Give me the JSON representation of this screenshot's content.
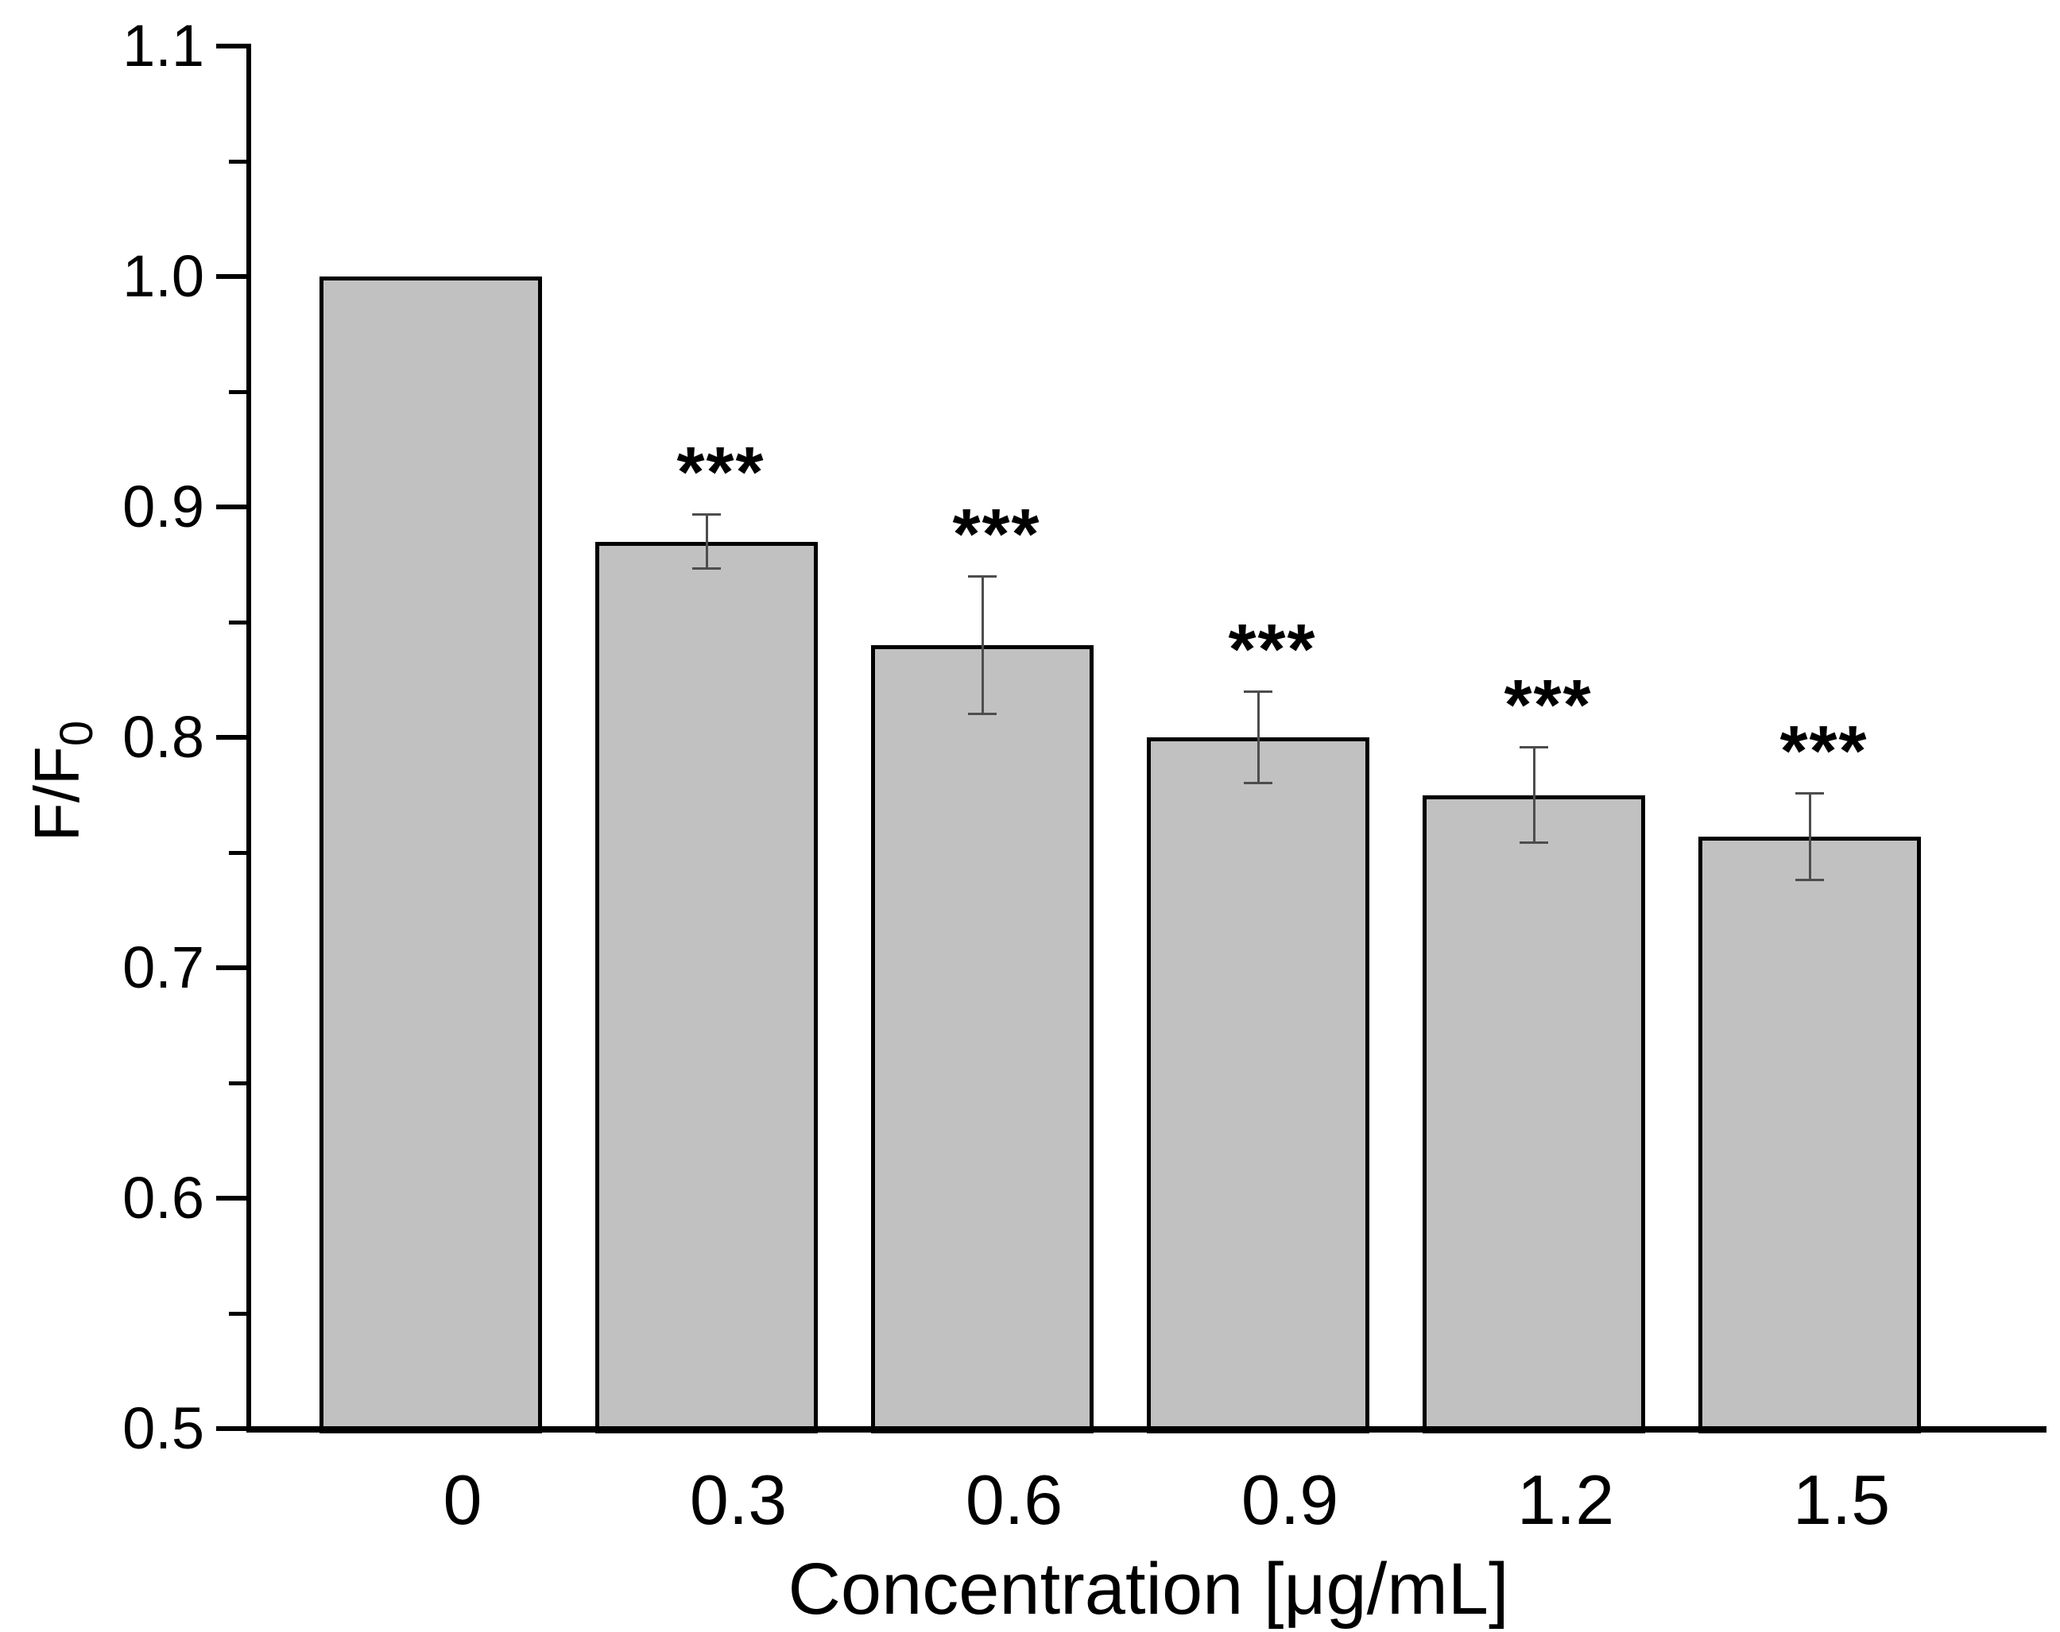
{
  "chart_data": {
    "type": "bar",
    "title": "",
    "xlabel": "Concentration [μg/mL]",
    "ylabel_main": "F/F",
    "ylabel_sub": "0",
    "categories": [
      "0",
      "0.3",
      "0.6",
      "0.9",
      "1.2",
      "1.5"
    ],
    "values": [
      1.0,
      0.885,
      0.84,
      0.8,
      0.775,
      0.757
    ],
    "errors": [
      null,
      0.012,
      0.03,
      0.02,
      0.021,
      0.019
    ],
    "significance": [
      "",
      "***",
      "***",
      "***",
      "***",
      "***"
    ],
    "ylim": [
      0.5,
      1.1
    ],
    "yticks_major": [
      0.5,
      0.6,
      0.7,
      0.8,
      0.9,
      1.0,
      1.1
    ],
    "ytick_labels": [
      "0.5",
      "0.6",
      "0.7",
      "0.8",
      "0.9",
      "1.0",
      "1.1"
    ],
    "yticks_minor": [
      0.55,
      0.65,
      0.75,
      0.85,
      0.95,
      1.05
    ],
    "grid": "off",
    "legend": "none",
    "bar_fill_color": "#c1c1c1",
    "bar_border_color": "#000000",
    "error_bar_color": "#4d4d4d",
    "axis_color": "#000000",
    "background_color": "#ffffff"
  }
}
